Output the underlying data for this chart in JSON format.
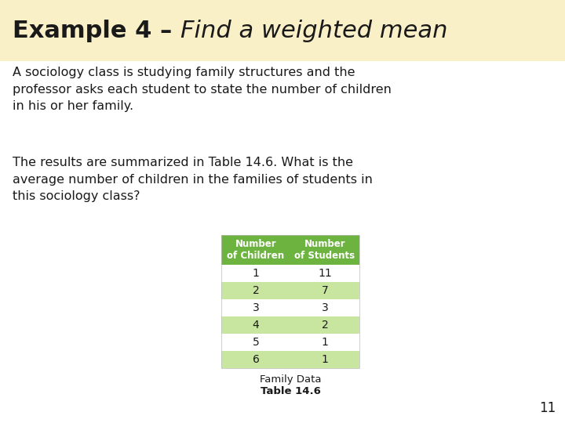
{
  "title_bold": "Example 4 – ",
  "title_italic": "Find a weighted mean",
  "title_bg": "#FAF0C8",
  "bg_color": "#FFFFFF",
  "body_text1": "A sociology class is studying family structures and the\nprofessor asks each student to state the number of children\nin his or her family.",
  "body_text2": "The results are summarized in Table 14.6. What is the\naverage number of children in the families of students in\nthis sociology class?",
  "table_header": [
    "Number\nof Children",
    "Number\nof Students"
  ],
  "table_data": [
    [
      "1",
      "11"
    ],
    [
      "2",
      "7"
    ],
    [
      "3",
      "3"
    ],
    [
      "4",
      "2"
    ],
    [
      "5",
      "1"
    ],
    [
      "6",
      "1"
    ]
  ],
  "table_header_bg": "#6DB33F",
  "table_header_fg": "#FFFFFF",
  "table_row_odd_bg": "#FFFFFF",
  "table_row_even_bg": "#C8E6A0",
  "table_caption1": "Family Data",
  "table_caption2": "Table 14.6",
  "slide_number": "11",
  "text_color": "#1A1A1A",
  "title_fontsize": 22,
  "body_fontsize": 11.5,
  "table_header_fontsize": 8.5,
  "table_data_fontsize": 10,
  "caption_fontsize": 9.5,
  "slide_num_fontsize": 12
}
